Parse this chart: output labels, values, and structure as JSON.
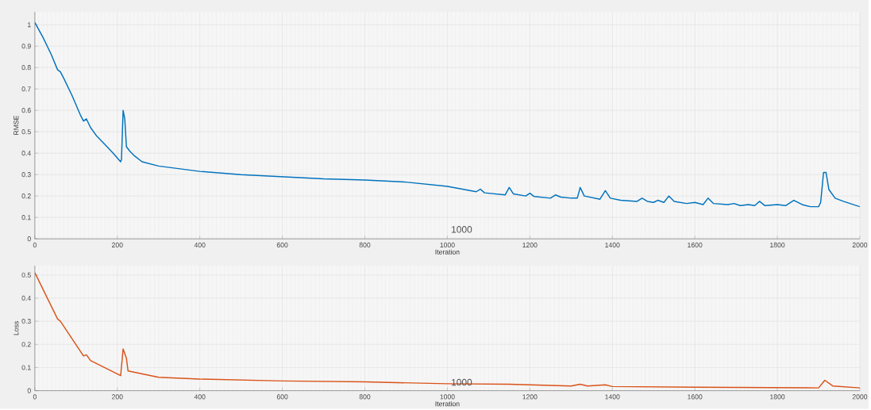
{
  "chart_data": [
    {
      "type": "line",
      "ylabel": "RMSE",
      "xlabel": "Iteration",
      "color": "#0072bd",
      "grid": true,
      "xlim": [
        0,
        2000
      ],
      "ylim": [
        0,
        1.06
      ],
      "xticks": [
        0,
        200,
        400,
        600,
        800,
        1000,
        1200,
        1400,
        1600,
        1800,
        2000
      ],
      "yticks": [
        0,
        0.1,
        0.2,
        0.3,
        0.4,
        0.5,
        0.6,
        0.7,
        0.8,
        0.9,
        1
      ],
      "annotations": [
        "1000"
      ],
      "x": [
        0,
        20,
        40,
        55,
        62,
        70,
        90,
        110,
        118,
        125,
        130,
        135,
        150,
        170,
        190,
        208,
        210,
        214,
        218,
        222,
        226,
        230,
        240,
        260,
        300,
        400,
        500,
        600,
        700,
        800,
        900,
        1000,
        1070,
        1080,
        1090,
        1140,
        1150,
        1160,
        1190,
        1200,
        1210,
        1250,
        1262,
        1275,
        1300,
        1315,
        1322,
        1332,
        1370,
        1383,
        1395,
        1420,
        1460,
        1472,
        1485,
        1500,
        1510,
        1525,
        1537,
        1550,
        1580,
        1600,
        1620,
        1632,
        1645,
        1680,
        1695,
        1710,
        1730,
        1745,
        1757,
        1770,
        1800,
        1820,
        1840,
        1860,
        1880,
        1900,
        1905,
        1912,
        1918,
        1925,
        1940,
        1960,
        2000
      ],
      "values": [
        1.01,
        0.94,
        0.86,
        0.79,
        0.78,
        0.75,
        0.67,
        0.58,
        0.55,
        0.56,
        0.54,
        0.52,
        0.48,
        0.44,
        0.4,
        0.36,
        0.37,
        0.6,
        0.56,
        0.43,
        0.42,
        0.41,
        0.39,
        0.36,
        0.34,
        0.315,
        0.3,
        0.29,
        0.28,
        0.275,
        0.265,
        0.245,
        0.22,
        0.232,
        0.215,
        0.205,
        0.24,
        0.21,
        0.2,
        0.213,
        0.198,
        0.19,
        0.205,
        0.195,
        0.19,
        0.19,
        0.24,
        0.2,
        0.185,
        0.225,
        0.19,
        0.18,
        0.175,
        0.19,
        0.175,
        0.17,
        0.18,
        0.17,
        0.2,
        0.175,
        0.165,
        0.17,
        0.16,
        0.19,
        0.165,
        0.16,
        0.165,
        0.155,
        0.16,
        0.155,
        0.175,
        0.155,
        0.16,
        0.155,
        0.18,
        0.16,
        0.15,
        0.15,
        0.17,
        0.31,
        0.31,
        0.23,
        0.19,
        0.175,
        0.15
      ]
    },
    {
      "type": "line",
      "ylabel": "Loss",
      "xlabel": "Iteration",
      "color": "#d95319",
      "grid": true,
      "xlim": [
        0,
        2000
      ],
      "ylim": [
        0,
        0.54
      ],
      "xticks": [
        0,
        200,
        400,
        600,
        800,
        1000,
        1200,
        1400,
        1600,
        1800,
        2000
      ],
      "yticks": [
        0,
        0.1,
        0.2,
        0.3,
        0.4,
        0.5
      ],
      "annotations": [
        "1000"
      ],
      "x": [
        0,
        55,
        62,
        118,
        125,
        135,
        208,
        214,
        222,
        226,
        240,
        300,
        400,
        600,
        800,
        1000,
        1150,
        1300,
        1322,
        1340,
        1383,
        1400,
        1600,
        1800,
        1900,
        1915,
        1935,
        2000
      ],
      "values": [
        0.51,
        0.31,
        0.3,
        0.15,
        0.155,
        0.13,
        0.065,
        0.18,
        0.14,
        0.085,
        0.08,
        0.058,
        0.05,
        0.042,
        0.038,
        0.03,
        0.028,
        0.02,
        0.028,
        0.02,
        0.025,
        0.018,
        0.015,
        0.013,
        0.012,
        0.045,
        0.02,
        0.012
      ]
    }
  ]
}
